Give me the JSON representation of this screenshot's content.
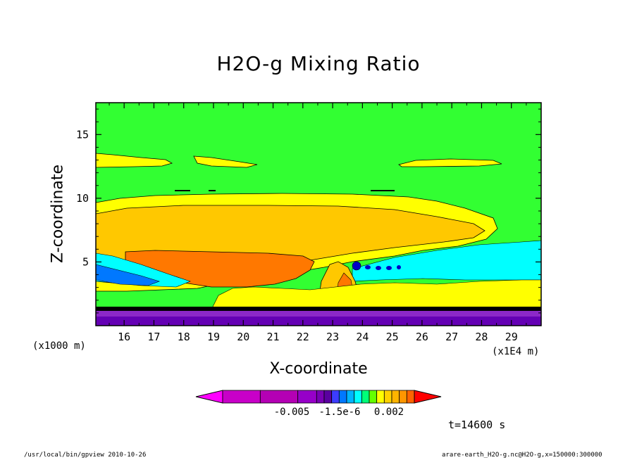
{
  "chart_data": {
    "type": "heatmap",
    "title": "H2O-g Mixing Ratio",
    "xlabel": "X-coordinate",
    "ylabel": "Z-coordinate",
    "x_unit_label": "(x1E4 m)",
    "y_unit_label": "(x1000 m)",
    "x_ticks": [
      "16",
      "17",
      "18",
      "19",
      "20",
      "21",
      "22",
      "23",
      "24",
      "25",
      "26",
      "27",
      "28",
      "29"
    ],
    "y_ticks": [
      "5",
      "10",
      "15"
    ],
    "xlim": [
      15.05,
      30.0
    ],
    "ylim": [
      0,
      17.5
    ],
    "grid": false,
    "colorbar": {
      "colors": [
        "#ff00ff",
        "#c800c8",
        "#b400b4",
        "#9600c8",
        "#7800b4",
        "#5a00a0",
        "#3c3cff",
        "#0078ff",
        "#00b4ff",
        "#00ffff",
        "#00ff78",
        "#64ff00",
        "#ffff00",
        "#ffd200",
        "#ffb400",
        "#ff9600",
        "#ff6400",
        "#ff0000"
      ],
      "tick_labels": [
        "-0.005",
        "-1.5e-6",
        "0.002"
      ]
    },
    "regions": [
      {
        "name": "background",
        "color": "#32ff32"
      },
      {
        "name": "upper yellow band",
        "color": "#ffff00"
      },
      {
        "name": "anvil gold layer",
        "color": "#ffc800"
      },
      {
        "name": "core orange",
        "color": "#ff7800"
      },
      {
        "name": "cyan moist layer",
        "color": "#00ffff"
      },
      {
        "name": "near-surface purple",
        "color": "#8c28c8"
      }
    ]
  },
  "annotation_time": "t=14600 s",
  "footer_left": "/usr/local/bin/gpview  2010-10-26",
  "footer_right": "arare-earth_H2O-g.nc@H2O-g,x=150000:300000"
}
